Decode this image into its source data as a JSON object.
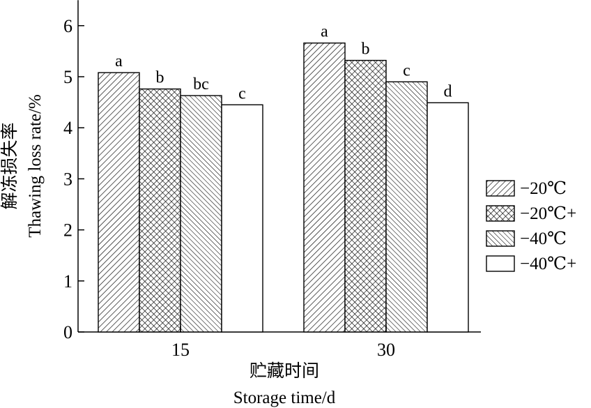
{
  "chart_data": {
    "type": "bar",
    "categories": [
      "15",
      "30"
    ],
    "series": [
      {
        "name": "−20℃",
        "values": [
          5.08,
          5.66
        ],
        "labels": [
          "a",
          "a"
        ],
        "pattern": "diag-right"
      },
      {
        "name": "−20℃+",
        "values": [
          4.76,
          5.32
        ],
        "labels": [
          "b",
          "b"
        ],
        "pattern": "crosshatch"
      },
      {
        "name": "−40℃",
        "values": [
          4.63,
          4.9
        ],
        "labels": [
          "bc",
          "c"
        ],
        "pattern": "diag-left"
      },
      {
        "name": "−40℃+",
        "values": [
          4.45,
          4.49
        ],
        "labels": [
          "c",
          "d"
        ],
        "pattern": "none"
      }
    ],
    "xlabel_cn": "贮藏时间",
    "xlabel": "Storage time/d",
    "ylabel_cn": "解冻损失率",
    "ylabel": "Thawing loss rate/%",
    "ylim": [
      0,
      6.5
    ],
    "yticks": [
      "0",
      "1",
      "2",
      "3",
      "4",
      "5",
      "6"
    ],
    "grid": false,
    "legend_position": "right"
  }
}
